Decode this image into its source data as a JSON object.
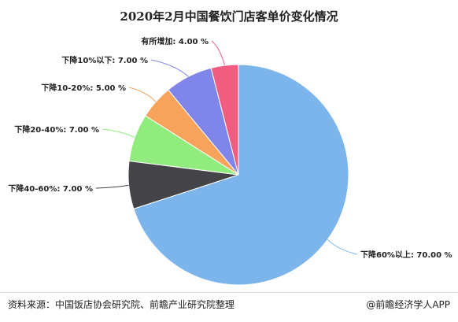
{
  "chart_data": {
    "type": "pie",
    "title": "2020年2月中国餐饮门店客单价变化情况",
    "slices": [
      {
        "label": "下降60%以上: 70.00 %",
        "name": "下降60%以上",
        "value": 70.0,
        "color": "#7cb5ec"
      },
      {
        "label": "下降40-60%: 7.00 %",
        "name": "下降40-60%",
        "value": 7.0,
        "color": "#434348"
      },
      {
        "label": "下降20-40%: 7.00 %",
        "name": "下降20-40%",
        "value": 7.0,
        "color": "#90ed7d"
      },
      {
        "label": "下降10-20%: 5.00 %",
        "name": "下降10-20%",
        "value": 5.0,
        "color": "#f7a35c"
      },
      {
        "label": "下降10%以下: 7.00 %",
        "name": "下降10%以下",
        "value": 7.0,
        "color": "#8085e9"
      },
      {
        "label": "有所增加: 4.00 %",
        "name": "有所增加",
        "value": 4.0,
        "color": "#f15c80"
      }
    ]
  },
  "footer": {
    "source": "资料来源：中国饭店协会研究院、前瞻产业研究院整理",
    "credit": "@前瞻经济学人APP"
  }
}
